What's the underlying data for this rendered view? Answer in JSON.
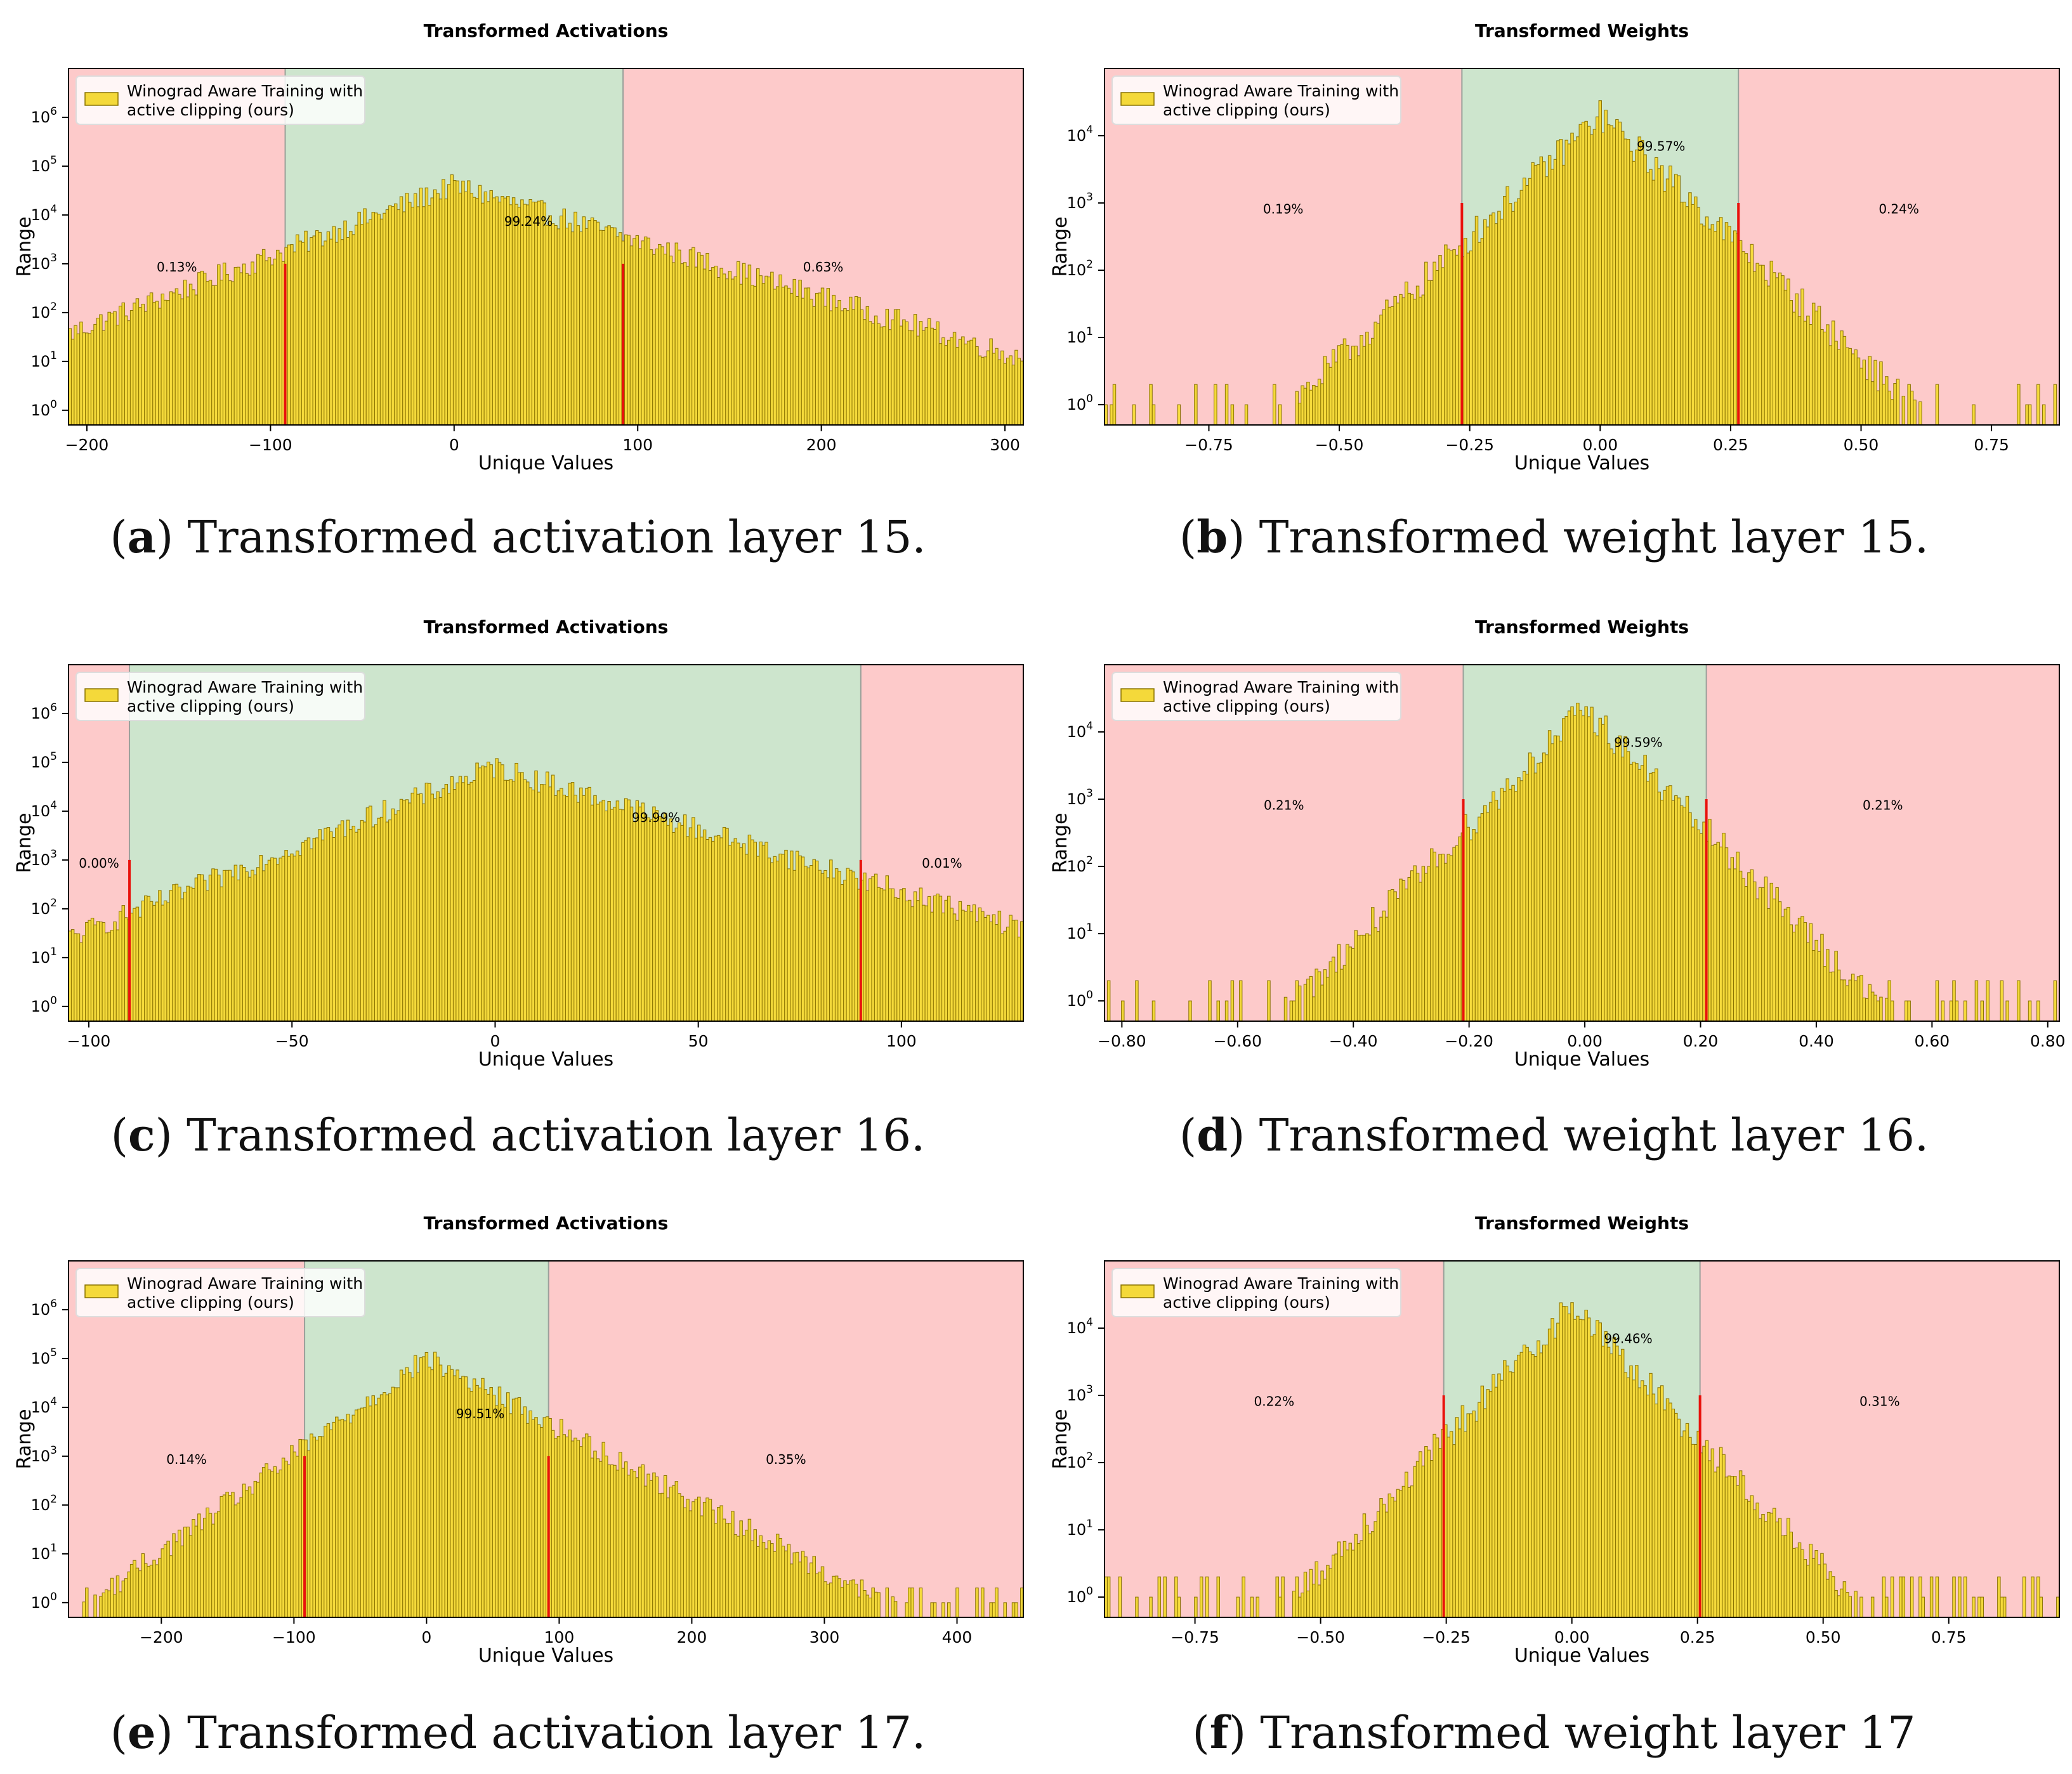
{
  "legend_label_line1": "Winograd Aware Training with",
  "legend_label_line2": "active clipping (ours)",
  "colors": {
    "bar_fill": "#f4d93a",
    "bar_edge": "#8a7300",
    "clip_line": "#e8120c",
    "outer_region": "#fdcaca",
    "inner_region": "#cde5cd"
  },
  "chart_data": [
    {
      "panel": "a",
      "type": "bar",
      "title": "Transformed Activations",
      "xlabel": "Unique Values",
      "ylabel": "Range",
      "yscale": "log",
      "xlim": [
        -210,
        310
      ],
      "ylim": [
        0.5,
        10000000
      ],
      "xticks": [
        -200,
        -100,
        0,
        100,
        200,
        300
      ],
      "yticks": [
        1,
        10,
        100,
        1000,
        10000,
        100000,
        1000000
      ],
      "clip": [
        -92,
        92
      ],
      "percent_left": "0.13%",
      "percent_center": "99.24%",
      "percent_right": "0.63%",
      "peak_value": 40000,
      "decay_left": 30,
      "decay_right": 38,
      "caption_letter": "a",
      "caption_text": " Transformed activation layer 15."
    },
    {
      "panel": "b",
      "type": "bar",
      "title": "Transformed Weights",
      "xlabel": "Unique Values",
      "ylabel": "Range",
      "yscale": "log",
      "xlim": [
        -0.95,
        0.88
      ],
      "ylim": [
        0.5,
        100000
      ],
      "xticks": [
        -0.75,
        -0.5,
        -0.25,
        0.0,
        0.25,
        0.5,
        0.75
      ],
      "yticks": [
        1,
        10,
        100,
        1000,
        10000
      ],
      "clip": [
        -0.265,
        0.265
      ],
      "percent_left": "0.19%",
      "percent_center": "99.57%",
      "percent_right": "0.24%",
      "peak_value": 20000,
      "decay_left": 0.06,
      "decay_right": 0.06,
      "caption_letter": "b",
      "caption_text": " Transformed weight layer 15."
    },
    {
      "panel": "c",
      "type": "bar",
      "title": "Transformed Activations",
      "xlabel": "Unique Values",
      "ylabel": "Range",
      "yscale": "log",
      "xlim": [
        -105,
        130
      ],
      "ylim": [
        0.5,
        10000000
      ],
      "xticks": [
        -100,
        -50,
        0,
        50,
        100
      ],
      "yticks": [
        1,
        10,
        100,
        1000,
        10000,
        100000,
        1000000
      ],
      "clip": [
        -90,
        90
      ],
      "percent_left": "0.00%",
      "percent_center": "99.99%",
      "percent_right": "0.01%",
      "peak_value": 80000,
      "decay_left": 13,
      "decay_right": 17,
      "caption_letter": "c",
      "caption_text": " Transformed activation layer 16."
    },
    {
      "panel": "d",
      "type": "bar",
      "title": "Transformed Weights",
      "xlabel": "Unique Values",
      "ylabel": "Range",
      "yscale": "log",
      "xlim": [
        -0.83,
        0.82
      ],
      "ylim": [
        0.5,
        100000
      ],
      "xticks": [
        -0.8,
        -0.6,
        -0.4,
        -0.2,
        0.0,
        0.2,
        0.4,
        0.6,
        0.8
      ],
      "yticks": [
        1,
        10,
        100,
        1000,
        10000
      ],
      "clip": [
        -0.21,
        0.21
      ],
      "percent_left": "0.21%",
      "percent_center": "99.59%",
      "percent_right": "0.21%",
      "peak_value": 22000,
      "decay_left": 0.05,
      "decay_right": 0.05,
      "caption_letter": "d",
      "caption_text": " Transformed weight layer 16."
    },
    {
      "panel": "e",
      "type": "bar",
      "title": "Transformed Activations",
      "xlabel": "Unique Values",
      "ylabel": "Range",
      "yscale": "log",
      "xlim": [
        -270,
        450
      ],
      "ylim": [
        0.5,
        10000000
      ],
      "xticks": [
        -200,
        -100,
        0,
        100,
        200,
        300,
        400
      ],
      "yticks": [
        1,
        10,
        100,
        1000,
        10000,
        100000,
        1000000
      ],
      "clip": [
        -92,
        92
      ],
      "percent_left": "0.14%",
      "percent_center": "99.51%",
      "percent_right": "0.35%",
      "peak_value": 100000,
      "decay_left": 22,
      "decay_right": 30,
      "caption_letter": "e",
      "caption_text": " Transformed activation layer 17."
    },
    {
      "panel": "f",
      "type": "bar",
      "title": "Transformed Weights",
      "xlabel": "Unique Values",
      "ylabel": "Range",
      "yscale": "log",
      "xlim": [
        -0.93,
        0.97
      ],
      "ylim": [
        0.5,
        100000
      ],
      "xticks": [
        -0.75,
        -0.5,
        -0.25,
        0.0,
        0.25,
        0.5,
        0.75
      ],
      "yticks": [
        1,
        10,
        100,
        1000,
        10000
      ],
      "clip": [
        -0.255,
        0.255
      ],
      "percent_left": "0.22%",
      "percent_center": "99.46%",
      "percent_right": "0.31%",
      "peak_value": 22000,
      "decay_left": 0.055,
      "decay_right": 0.055,
      "caption_letter": "f",
      "caption_text": " Transformed weight layer 17"
    }
  ]
}
